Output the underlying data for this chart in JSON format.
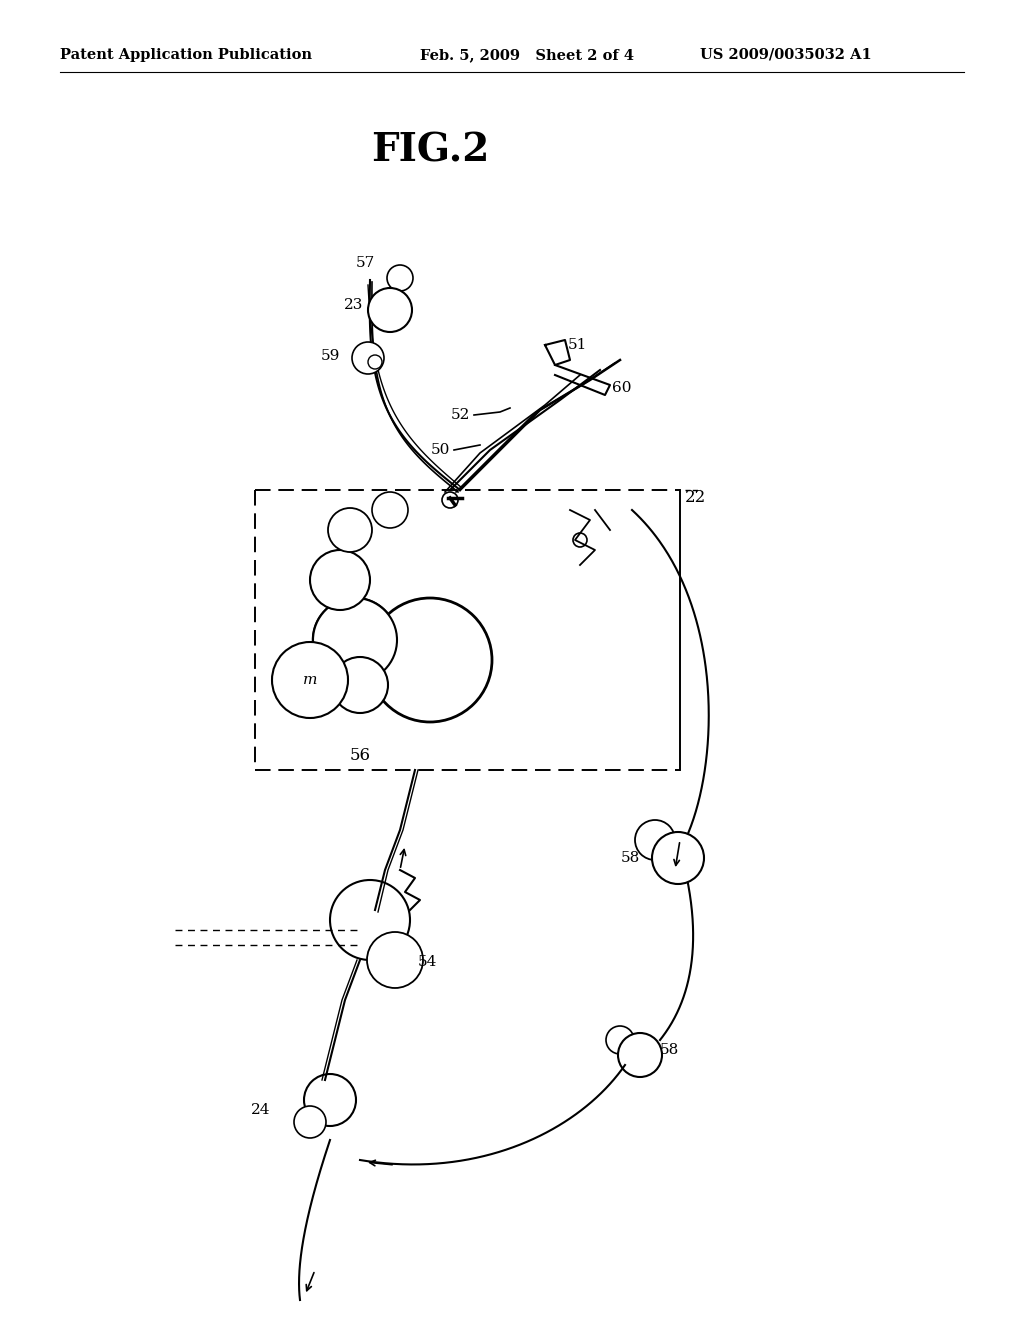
{
  "title": "FIG.2",
  "header_left": "Patent Application Publication",
  "header_mid": "Feb. 5, 2009   Sheet 2 of 4",
  "header_right": "US 2009/0035032 A1",
  "bg_color": "#ffffff",
  "text_color": "#000000",
  "line_color": "#000000"
}
